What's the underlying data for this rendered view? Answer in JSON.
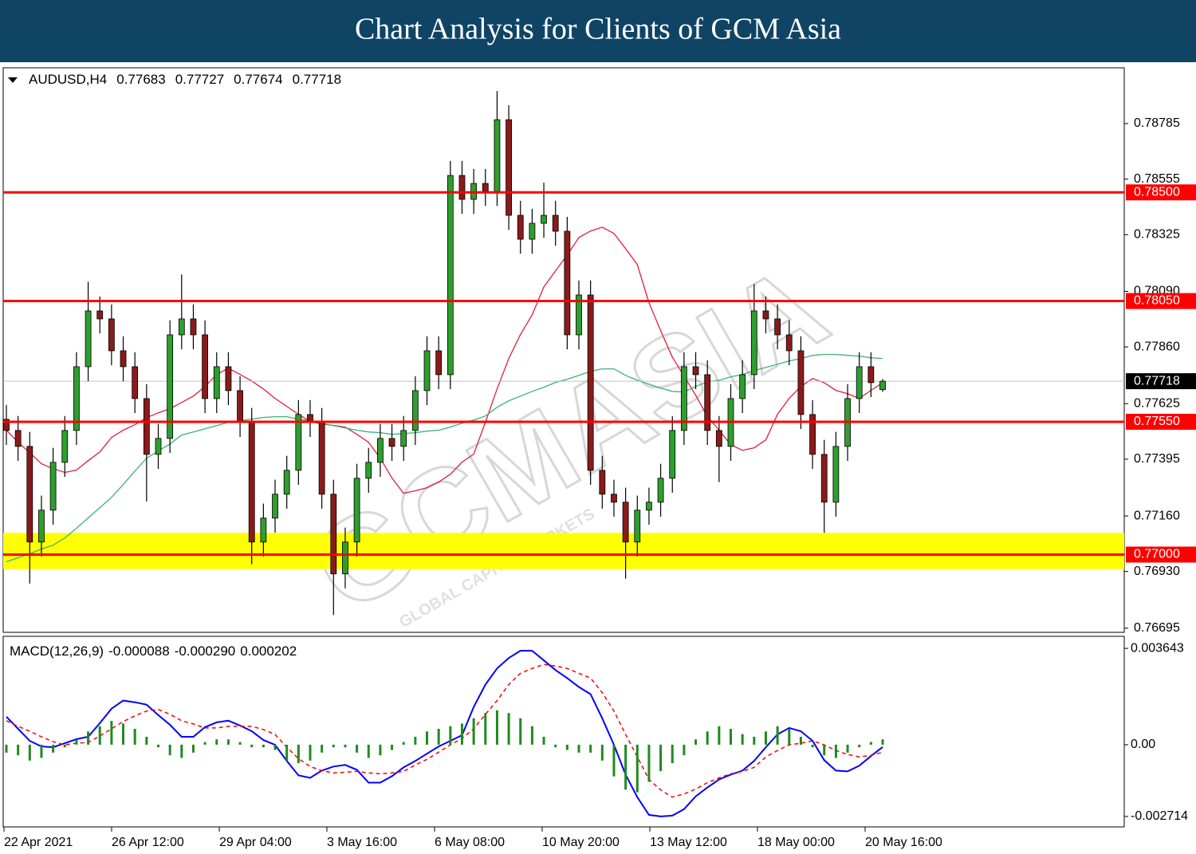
{
  "header": {
    "title": "Chart Analysis for Clients of GCM Asia"
  },
  "watermark": [
    "GCMASIA",
    "GLOBAL CAPITAL MARKETS"
  ],
  "chart_data": [
    {
      "type": "candlestick",
      "symbol": "AUDUSD,H4",
      "date_labels": [
        "22 Apr 2021",
        "26 Apr 12:00",
        "29 Apr 04:00",
        "3 May 16:00",
        "6 May 08:00",
        "10 May 20:00",
        "13 May 12:00",
        "18 May 00:00",
        "20 May 16:00"
      ],
      "series": [
        {
          "up_color": "#2e9e2e",
          "down_color": "#8b1a1a",
          "open": [
            0.7756,
            0.77514,
            0.77448,
            0.77052,
            0.77184,
            0.77382,
            0.77514,
            0.77778,
            0.78009,
            0.77976,
            0.77844,
            0.77778,
            0.77646,
            0.77415,
            0.77481,
            0.7791,
            0.77976,
            0.7791,
            0.77646,
            0.77778,
            0.77679,
            0.77547,
            0.77052,
            0.77151,
            0.7725,
            0.77349,
            0.7758,
            0.77547,
            0.7725,
            0.7692,
            0.77052,
            0.77316,
            0.77382,
            0.77481,
            0.77448,
            0.77514,
            0.77679,
            0.77844,
            0.77745,
            0.7857,
            0.78471,
            0.78537,
            0.78504,
            0.78801,
            0.78405,
            0.78306,
            0.78372,
            0.78405,
            0.78339,
            0.7791,
            0.78075,
            0.77349,
            0.7725,
            0.77217,
            0.77052,
            0.77184,
            0.77217,
            0.77316,
            0.77514,
            0.77778,
            0.77745,
            0.77514,
            0.77448,
            0.77646,
            0.77745,
            0.78009,
            0.77976,
            0.7791,
            0.77844,
            0.7758,
            0.77415,
            0.77217,
            0.77448,
            0.77646,
            0.77778,
            0.77683
          ],
          "high": [
            0.7762,
            0.77574,
            0.77508,
            0.77244,
            0.77442,
            0.77574,
            0.77838,
            0.7813,
            0.78069,
            0.78036,
            0.77904,
            0.77838,
            0.77706,
            0.77541,
            0.7797,
            0.7816,
            0.78036,
            0.7797,
            0.77838,
            0.77838,
            0.77739,
            0.77607,
            0.77211,
            0.7731,
            0.77409,
            0.7764,
            0.7764,
            0.77607,
            0.7731,
            0.77112,
            0.77376,
            0.77442,
            0.77541,
            0.77541,
            0.77574,
            0.77739,
            0.77904,
            0.77904,
            0.7863,
            0.7863,
            0.78597,
            0.78597,
            0.7892,
            0.78861,
            0.78465,
            0.78432,
            0.7854,
            0.78465,
            0.78399,
            0.78135,
            0.78135,
            0.77409,
            0.7731,
            0.77277,
            0.77244,
            0.77277,
            0.77376,
            0.77574,
            0.77838,
            0.77838,
            0.77805,
            0.77574,
            0.77706,
            0.77805,
            0.7812,
            0.78069,
            0.78036,
            0.7797,
            0.77904,
            0.7764,
            0.77475,
            0.77508,
            0.77706,
            0.77838,
            0.77838,
            0.77727
          ],
          "low": [
            0.77454,
            0.77388,
            0.7688,
            0.76992,
            0.77124,
            0.77322,
            0.77454,
            0.77718,
            0.77916,
            0.77784,
            0.77718,
            0.77586,
            0.7722,
            0.77355,
            0.77421,
            0.7785,
            0.7785,
            0.77586,
            0.77586,
            0.77619,
            0.77487,
            0.7696,
            0.76992,
            0.77091,
            0.7719,
            0.77289,
            0.77487,
            0.7719,
            0.7675,
            0.7686,
            0.76992,
            0.77256,
            0.77322,
            0.77388,
            0.77388,
            0.77454,
            0.77619,
            0.77685,
            0.77685,
            0.78411,
            0.78411,
            0.78444,
            0.78444,
            0.78345,
            0.78246,
            0.78246,
            0.78312,
            0.78279,
            0.7785,
            0.7785,
            0.77289,
            0.7719,
            0.77157,
            0.769,
            0.76992,
            0.77124,
            0.77157,
            0.77256,
            0.77454,
            0.77685,
            0.77454,
            0.773,
            0.77388,
            0.77586,
            0.77685,
            0.77916,
            0.7785,
            0.77784,
            0.7752,
            0.77355,
            0.7709,
            0.77157,
            0.77388,
            0.77586,
            0.77652,
            0.77674
          ],
          "close": [
            0.77514,
            0.77448,
            0.77052,
            0.77184,
            0.77382,
            0.77514,
            0.77778,
            0.78009,
            0.77976,
            0.77844,
            0.77778,
            0.77646,
            0.77415,
            0.77481,
            0.7791,
            0.77976,
            0.7791,
            0.77646,
            0.77778,
            0.77679,
            0.77547,
            0.77052,
            0.77151,
            0.7725,
            0.77349,
            0.7758,
            0.77547,
            0.7725,
            0.7692,
            0.77052,
            0.77316,
            0.77382,
            0.77481,
            0.77448,
            0.77514,
            0.77679,
            0.77844,
            0.77745,
            0.7857,
            0.78471,
            0.78537,
            0.78504,
            0.78801,
            0.78405,
            0.78306,
            0.78372,
            0.78405,
            0.78339,
            0.7791,
            0.78075,
            0.77349,
            0.7725,
            0.77217,
            0.77052,
            0.77184,
            0.77217,
            0.77316,
            0.77514,
            0.77778,
            0.77745,
            0.77514,
            0.77448,
            0.77646,
            0.77745,
            0.78009,
            0.77976,
            0.7791,
            0.77844,
            0.7758,
            0.77415,
            0.77217,
            0.77448,
            0.77646,
            0.77778,
            0.77712,
            0.77718
          ]
        }
      ],
      "lines": [
        {
          "color": "#e0203a",
          "values": [
            0.77515,
            0.77465,
            0.77422,
            0.77376,
            0.77356,
            0.7734,
            0.7735,
            0.77389,
            0.77425,
            0.77485,
            0.77515,
            0.77538,
            0.77567,
            0.77587,
            0.77604,
            0.7763,
            0.77656,
            0.77696,
            0.77746,
            0.77772,
            0.77746,
            0.77719,
            0.77686,
            0.77647,
            0.77614,
            0.77581,
            0.77551,
            0.77541,
            0.77535,
            0.77528,
            0.77498,
            0.77465,
            0.77399,
            0.77317,
            0.77254,
            0.77264,
            0.77277,
            0.773,
            0.77333,
            0.77383,
            0.77416,
            0.77548,
            0.77686,
            0.77812,
            0.77911,
            0.77993,
            0.78109,
            0.78175,
            0.78241,
            0.78313,
            0.7834,
            0.78356,
            0.7833,
            0.78267,
            0.78201,
            0.78043,
            0.77927,
            0.77818,
            0.77739,
            0.7766,
            0.77571,
            0.77515,
            0.77455,
            0.77432,
            0.77442,
            0.77475,
            0.77581,
            0.77647,
            0.77696,
            0.77729,
            0.77712,
            0.7768,
            0.77666,
            0.77647,
            0.7768,
            0.77712
          ]
        },
        {
          "color": "#3cb371",
          "values": [
            0.7697,
            0.76987,
            0.77003,
            0.77023,
            0.77039,
            0.77069,
            0.77109,
            0.77152,
            0.77194,
            0.77237,
            0.7729,
            0.77346,
            0.77399,
            0.77429,
            0.77458,
            0.77495,
            0.77508,
            0.77521,
            0.77534,
            0.77548,
            0.77554,
            0.77561,
            0.77568,
            0.77571,
            0.77571,
            0.77561,
            0.77554,
            0.77544,
            0.77534,
            0.77524,
            0.77515,
            0.77508,
            0.77505,
            0.77498,
            0.77501,
            0.77505,
            0.77511,
            0.77515,
            0.77528,
            0.77544,
            0.77557,
            0.77574,
            0.7761,
            0.77637,
            0.77656,
            0.77676,
            0.77693,
            0.77713,
            0.77726,
            0.77742,
            0.77759,
            0.77769,
            0.77769,
            0.77742,
            0.77722,
            0.77706,
            0.77689,
            0.77676,
            0.77673,
            0.77696,
            0.77716,
            0.77722,
            0.77736,
            0.77746,
            0.77762,
            0.77775,
            0.77788,
            0.77802,
            0.77812,
            0.77825,
            0.77829,
            0.77829,
            0.77825,
            0.77822,
            0.77815,
            0.77812
          ]
        }
      ],
      "levels": {
        "values": [
          0.785,
          0.7805,
          0.7755,
          0.77
        ],
        "value_labels": [
          "0.78500",
          "0.78050",
          "0.77550",
          "0.77000"
        ],
        "color": "#ff0000"
      },
      "zone": [
        0.7694,
        0.7709
      ],
      "zone_color": "#ffff00",
      "current_color": "#000000",
      "ylim": [
        0.76678,
        0.79016
      ],
      "yticks": [
        0.78785,
        0.78555,
        0.78325,
        {
          "value": 0.7809,
          "label": "0.78090"
        },
        {
          "value": 0.7786,
          "label": "0.77860"
        },
        0.77625,
        0.77395,
        {
          "value": 0.7716,
          "label": "0.77160"
        },
        {
          "value": 0.7693,
          "label": "0.76930"
        },
        0.76695
      ]
    },
    {
      "type": "macd",
      "title": "MACD(12,26,9)",
      "title_values": [
        -8.8e-05,
        -0.00029,
        0.000202
      ],
      "title_value_labels": [
        "-0.000088",
        "-0.000290",
        "0.000202"
      ],
      "series": [
        {
          "kind": "line",
          "color": "#0000ff",
          "values": [
            0.001059,
            0.000602,
            0.000146,
            -6.7e-05,
            -9.7e-05,
            5.5e-05,
            0.000207,
            0.000298,
            0.000815,
            0.001363,
            0.001667,
            0.001606,
            0.001515,
            0.001119,
            0.000754,
            0.000298,
            0.000298,
            0.000663,
            0.000846,
            0.000907,
            0.000724,
            0.000511,
            0.000176,
            -6e-06,
            -0.000614,
            -0.001162,
            -0.001253,
            -0.00098,
            -0.000827,
            -0.000767,
            -0.000949,
            -0.001436,
            -0.001436,
            -0.001192,
            -0.000858,
            -0.000614,
            -0.000341,
            -6.7e-05,
            0.000146,
            0.000359,
            0.001424,
            0.002275,
            0.002884,
            0.003279,
            0.003553,
            0.003553,
            0.003188,
            0.002823,
            0.002519,
            0.002184,
            0.00191,
            0.000998,
            -6e-06,
            -0.001132,
            -0.001983,
            -0.002653,
            -0.002713,
            -0.002683,
            -0.00244,
            -0.001953,
            -0.001618,
            -0.001314,
            -0.001132,
            -0.00098,
            -0.000614,
            -9.7e-05,
            0.000389,
            0.000633,
            0.000511,
            0.000146,
            -0.000584,
            -0.00098,
            -0.00101,
            -0.000797,
            -0.000432,
            -8.8e-05
          ]
        },
        {
          "kind": "dashed",
          "color": "#ff0000",
          "values": [
            0.000907,
            0.000694,
            0.000511,
            0.000298,
            0.000116,
            -6e-06,
            5.5e-05,
            8.5e-05,
            0.000329,
            0.000602,
            0.000876,
            0.001089,
            0.001272,
            0.001332,
            0.00115,
            0.000907,
            0.000785,
            0.000633,
            0.000633,
            0.000694,
            0.000694,
            0.000694,
            0.000572,
            0.000389,
            -9.7e-05,
            -0.000523,
            -0.000827,
            -0.00098,
            -0.001071,
            -0.00104,
            -0.00101,
            -0.001071,
            -0.001101,
            -0.001071,
            -0.00101,
            -0.000767,
            -0.000554,
            -0.00028,
            -6e-06,
            0.000237,
            0.000602,
            0.00115,
            0.001667,
            0.002275,
            0.002701,
            0.002884,
            0.003036,
            0.002975,
            0.002884,
            0.002701,
            0.002519,
            0.001971,
            0.001272,
            0.000389,
            -0.000462,
            -0.001314,
            -0.00171,
            -0.001983,
            -0.001862,
            -0.001679,
            -0.001436,
            -0.001253,
            -0.001101,
            -0.00101,
            -0.000858,
            -0.000462,
            -0.000219,
            -6e-06,
            5.5e-05,
            0.000146,
            -6e-06,
            -0.000219,
            -0.000371,
            -0.000462,
            -0.000402,
            -0.00029
          ]
        },
        {
          "kind": "histogram",
          "color": "#1f8a1f",
          "values": [
            -0.0003,
            -0.0004,
            -0.0006,
            -0.0005,
            -0.0003,
            -0.0001,
            0.0002,
            0.0005,
            0.0007,
            0.0009,
            0.0008,
            0.0006,
            0.0003,
            -0.0001,
            -0.0004,
            -0.0005,
            -0.0003,
            0.0001,
            0.0002,
            0.0002,
            0.0001,
            -0.0001,
            -0.0001,
            -0.0002,
            -0.0006,
            -0.0007,
            -0.0006,
            -0.0003,
            -0.0001,
            -0.0001,
            -0.0003,
            -0.0005,
            -0.0004,
            -0.0002,
            0.0001,
            0.0003,
            0.0005,
            0.0006,
            0.0007,
            0.0008,
            0.001,
            0.0012,
            0.0013,
            0.0012,
            0.001,
            0.0007,
            0.0003,
            -0.0001,
            -0.0002,
            -0.0003,
            -0.0003,
            -0.0006,
            -0.0012,
            -0.0017,
            -0.0018,
            -0.0014,
            -0.001,
            -0.0007,
            -0.0004,
            0.0002,
            0.0005,
            0.0007,
            0.0006,
            0.0004,
            0.0003,
            0.0005,
            0.0007,
            0.0006,
            0.0003,
            -0.0001,
            -0.0004,
            -0.0005,
            -0.0003,
            -0.0001,
            0.0001,
            0.000202
          ]
        }
      ],
      "ylim": [
        -0.003109,
        0.004099
      ],
      "yticks": [
        0.003643,
        {
          "value": 0,
          "label": "0.00"
        },
        -0.002714
      ]
    }
  ]
}
